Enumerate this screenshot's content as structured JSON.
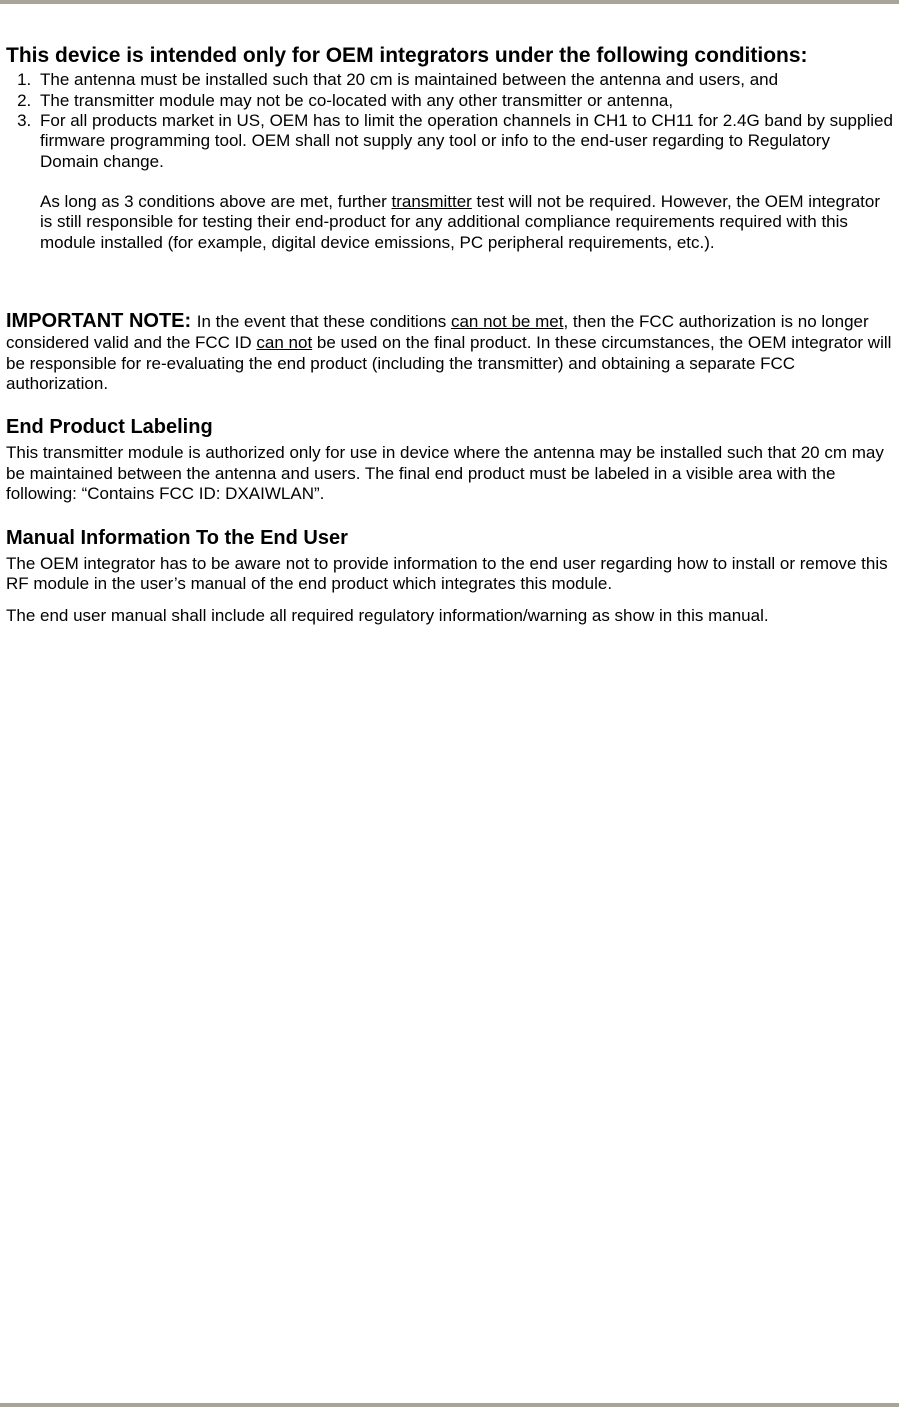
{
  "colors": {
    "border": "#a8a498",
    "text": "#000000",
    "background": "#ffffff"
  },
  "fonts": {
    "family": "Arial, Helvetica, sans-serif",
    "heading_size_pt": 21,
    "subheading_size_pt": 20,
    "body_size_pt": 17
  },
  "intro_heading": "This device is intended only for OEM integrators under the following conditions:",
  "conditions": [
    "The antenna must be installed such that 20 cm is maintained between the antenna and users, and",
    "The transmitter module may not be co-located with any other transmitter or antenna,",
    "For all products market in US, OEM has to limit the operation channels in CH1 to CH11 for 2.4G band by supplied firmware programming tool. OEM shall not supply any tool or info to the end-user regarding to Regulatory Domain change."
  ],
  "followup_pre": "As long as 3 conditions above are met, further ",
  "followup_underlined": "transmitter",
  "followup_post": " test will not be required. However, the OEM integrator is still responsible for testing their end-product for any additional compliance requirements required with this module installed (for example, digital device emissions, PC peripheral requirements, etc.).",
  "important_note_label": "IMPORTANT NOTE: ",
  "important_note_pre": "In the event that these conditions ",
  "important_note_u1": "can not be met",
  "important_note_mid": ", then the FCC authorization is no longer considered valid and the FCC ID ",
  "important_note_u2": "can not",
  "important_note_post": " be used on the final product. In these circumstances, the OEM integrator will be responsible for re-evaluating the end product (including the transmitter) and obtaining a separate FCC authorization.",
  "labeling_heading": "End Product Labeling",
  "labeling_para": "This transmitter module is authorized only for use in device where the antenna may be installed such that 20 cm may be maintained between the antenna and users. The final end product must be labeled in a visible area with the following: “Contains FCC ID: DXAIWLAN”.",
  "manual_heading": "Manual Information To the End User",
  "manual_para1": "The OEM integrator has to be aware not to provide information to the end user regarding how to install or remove this RF module in the user’s manual of the end product which integrates this module.",
  "manual_para2": "The end user manual shall include all required regulatory information/warning as show in this manual."
}
